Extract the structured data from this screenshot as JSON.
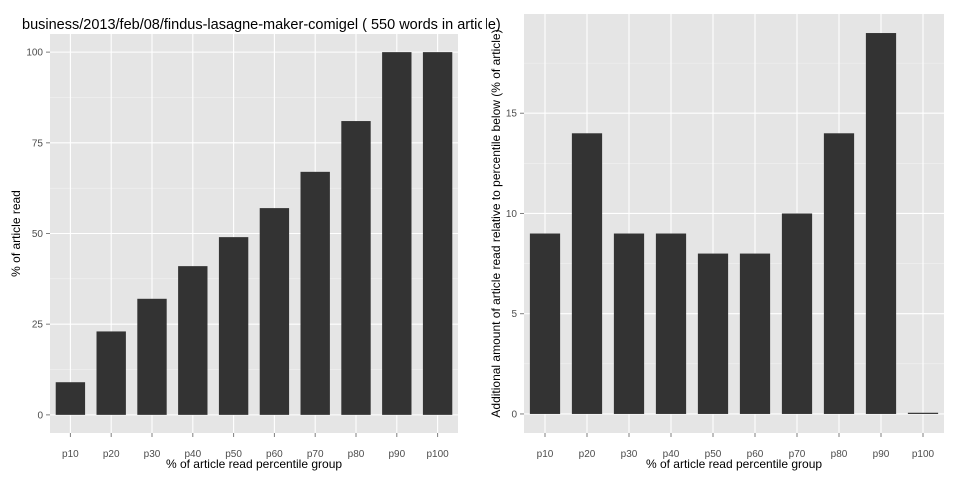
{
  "chart_data": [
    {
      "type": "bar",
      "title": "business/2013/feb/08/findus-lasagne-maker-comigel ( 550 words in article)",
      "xlabel": "% of article read percentile group",
      "ylabel": "% of article read",
      "categories": [
        "p10",
        "p20",
        "p30",
        "p40",
        "p50",
        "p60",
        "p70",
        "p80",
        "p90",
        "p100"
      ],
      "values": [
        9,
        23,
        32,
        41,
        49,
        57,
        67,
        81,
        100,
        100
      ],
      "ylim": [
        -5,
        105
      ],
      "yticks": [
        "0",
        "25",
        "50",
        "75",
        "100"
      ],
      "bar_color": "#333333",
      "panel_background": "#e5e5e5",
      "grid": true
    },
    {
      "type": "bar",
      "title": "",
      "xlabel": "% of article read percentile group",
      "ylabel": "Additional amount of article read relative to percentile below (% of article)",
      "categories": [
        "p10",
        "p20",
        "p30",
        "p40",
        "p50",
        "p60",
        "p70",
        "p80",
        "p90",
        "p100"
      ],
      "values": [
        9,
        14,
        9,
        9,
        8,
        8,
        10,
        14,
        19,
        0
      ],
      "ylim": [
        -0.95,
        19.95
      ],
      "yticks": [
        "0",
        "5",
        "10",
        "15"
      ],
      "bar_color": "#333333",
      "panel_background": "#e5e5e5",
      "grid": true
    }
  ]
}
